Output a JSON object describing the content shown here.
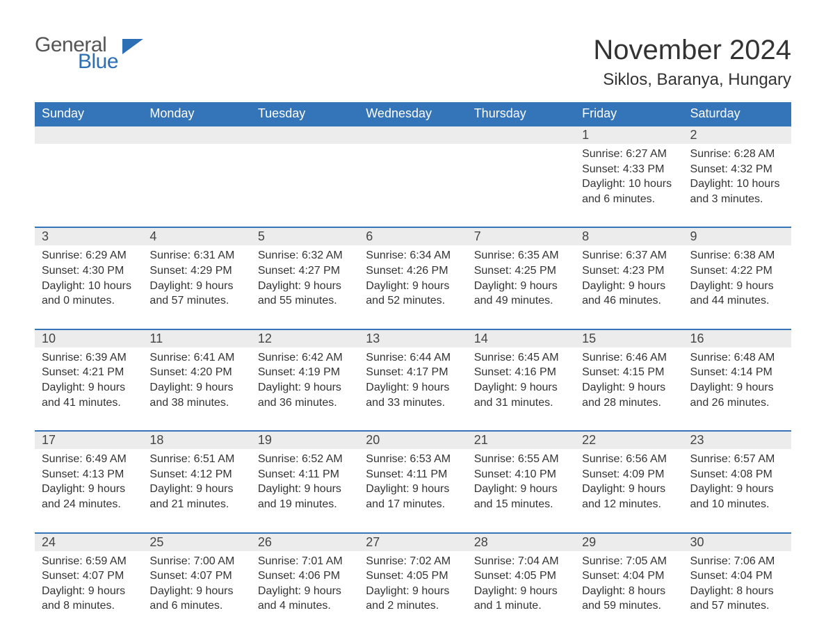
{
  "brand": {
    "part1": "General",
    "part2": "Blue",
    "flag_color": "#2d6fb5"
  },
  "title": "November 2024",
  "location": "Siklos, Baranya, Hungary",
  "colors": {
    "header_bg": "#3474b8",
    "header_text": "#ffffff",
    "daynum_bg": "#ececec",
    "row_border": "#3474b8",
    "text": "#333333"
  },
  "dayNames": [
    "Sunday",
    "Monday",
    "Tuesday",
    "Wednesday",
    "Thursday",
    "Friday",
    "Saturday"
  ],
  "labels": {
    "sunrise": "Sunrise: ",
    "sunset": "Sunset: ",
    "daylight": "Daylight: "
  },
  "weeks": [
    [
      null,
      null,
      null,
      null,
      null,
      {
        "n": "1",
        "sr": "6:27 AM",
        "ss": "4:33 PM",
        "dl": "10 hours and 6 minutes."
      },
      {
        "n": "2",
        "sr": "6:28 AM",
        "ss": "4:32 PM",
        "dl": "10 hours and 3 minutes."
      }
    ],
    [
      {
        "n": "3",
        "sr": "6:29 AM",
        "ss": "4:30 PM",
        "dl": "10 hours and 0 minutes."
      },
      {
        "n": "4",
        "sr": "6:31 AM",
        "ss": "4:29 PM",
        "dl": "9 hours and 57 minutes."
      },
      {
        "n": "5",
        "sr": "6:32 AM",
        "ss": "4:27 PM",
        "dl": "9 hours and 55 minutes."
      },
      {
        "n": "6",
        "sr": "6:34 AM",
        "ss": "4:26 PM",
        "dl": "9 hours and 52 minutes."
      },
      {
        "n": "7",
        "sr": "6:35 AM",
        "ss": "4:25 PM",
        "dl": "9 hours and 49 minutes."
      },
      {
        "n": "8",
        "sr": "6:37 AM",
        "ss": "4:23 PM",
        "dl": "9 hours and 46 minutes."
      },
      {
        "n": "9",
        "sr": "6:38 AM",
        "ss": "4:22 PM",
        "dl": "9 hours and 44 minutes."
      }
    ],
    [
      {
        "n": "10",
        "sr": "6:39 AM",
        "ss": "4:21 PM",
        "dl": "9 hours and 41 minutes."
      },
      {
        "n": "11",
        "sr": "6:41 AM",
        "ss": "4:20 PM",
        "dl": "9 hours and 38 minutes."
      },
      {
        "n": "12",
        "sr": "6:42 AM",
        "ss": "4:19 PM",
        "dl": "9 hours and 36 minutes."
      },
      {
        "n": "13",
        "sr": "6:44 AM",
        "ss": "4:17 PM",
        "dl": "9 hours and 33 minutes."
      },
      {
        "n": "14",
        "sr": "6:45 AM",
        "ss": "4:16 PM",
        "dl": "9 hours and 31 minutes."
      },
      {
        "n": "15",
        "sr": "6:46 AM",
        "ss": "4:15 PM",
        "dl": "9 hours and 28 minutes."
      },
      {
        "n": "16",
        "sr": "6:48 AM",
        "ss": "4:14 PM",
        "dl": "9 hours and 26 minutes."
      }
    ],
    [
      {
        "n": "17",
        "sr": "6:49 AM",
        "ss": "4:13 PM",
        "dl": "9 hours and 24 minutes."
      },
      {
        "n": "18",
        "sr": "6:51 AM",
        "ss": "4:12 PM",
        "dl": "9 hours and 21 minutes."
      },
      {
        "n": "19",
        "sr": "6:52 AM",
        "ss": "4:11 PM",
        "dl": "9 hours and 19 minutes."
      },
      {
        "n": "20",
        "sr": "6:53 AM",
        "ss": "4:11 PM",
        "dl": "9 hours and 17 minutes."
      },
      {
        "n": "21",
        "sr": "6:55 AM",
        "ss": "4:10 PM",
        "dl": "9 hours and 15 minutes."
      },
      {
        "n": "22",
        "sr": "6:56 AM",
        "ss": "4:09 PM",
        "dl": "9 hours and 12 minutes."
      },
      {
        "n": "23",
        "sr": "6:57 AM",
        "ss": "4:08 PM",
        "dl": "9 hours and 10 minutes."
      }
    ],
    [
      {
        "n": "24",
        "sr": "6:59 AM",
        "ss": "4:07 PM",
        "dl": "9 hours and 8 minutes."
      },
      {
        "n": "25",
        "sr": "7:00 AM",
        "ss": "4:07 PM",
        "dl": "9 hours and 6 minutes."
      },
      {
        "n": "26",
        "sr": "7:01 AM",
        "ss": "4:06 PM",
        "dl": "9 hours and 4 minutes."
      },
      {
        "n": "27",
        "sr": "7:02 AM",
        "ss": "4:05 PM",
        "dl": "9 hours and 2 minutes."
      },
      {
        "n": "28",
        "sr": "7:04 AM",
        "ss": "4:05 PM",
        "dl": "9 hours and 1 minute."
      },
      {
        "n": "29",
        "sr": "7:05 AM",
        "ss": "4:04 PM",
        "dl": "8 hours and 59 minutes."
      },
      {
        "n": "30",
        "sr": "7:06 AM",
        "ss": "4:04 PM",
        "dl": "8 hours and 57 minutes."
      }
    ]
  ]
}
